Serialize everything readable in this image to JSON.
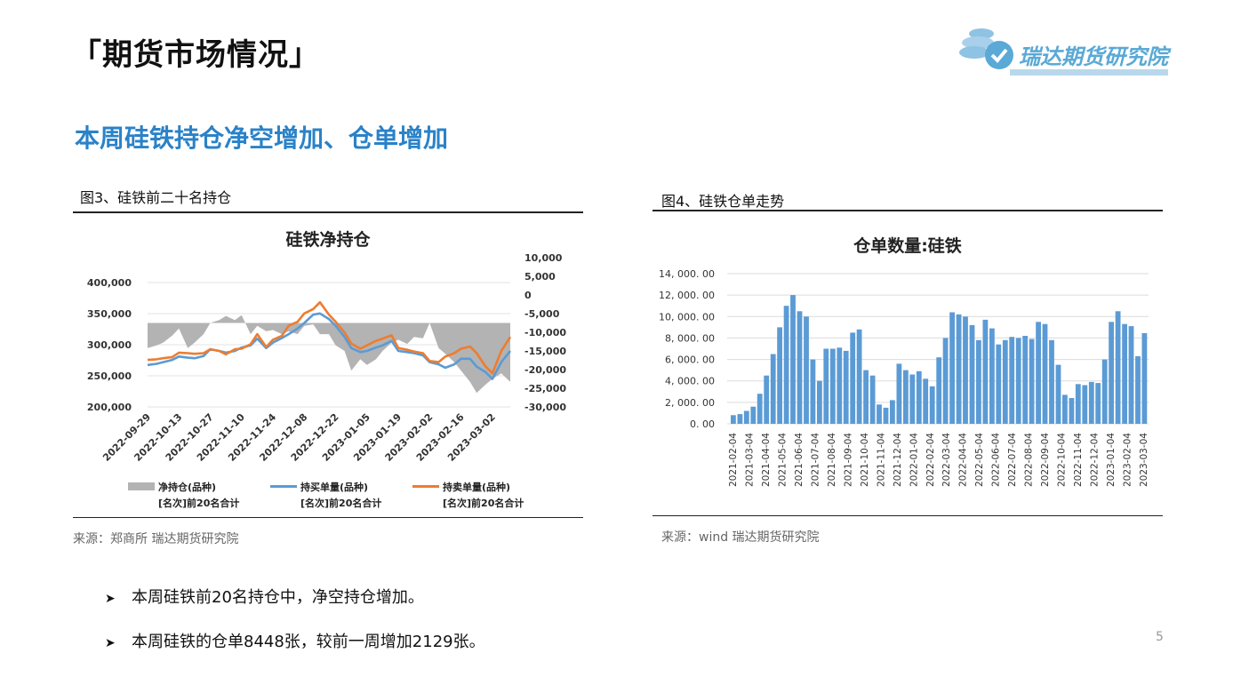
{
  "header": {
    "title": "「期货市场情况」"
  },
  "logo": {
    "text": "瑞达期货研究院"
  },
  "subtitle": "本周硅铁持仓净空增加、仓单增加",
  "figures": {
    "left": {
      "label": "图3、硅铁前二十名持仓",
      "source": "来源：郑商所  瑞达期货研究院"
    },
    "right": {
      "label": "图4、硅铁仓单走势",
      "source": "来源：wind    瑞达期货研究院"
    }
  },
  "bullets": [
    "本周硅铁前20名持仓中，净空持仓增加。",
    "本周硅铁的仓单8448张，较前一周增加2129张。"
  ],
  "page_number": "5",
  "colors": {
    "net": "#b3b3b3",
    "buy": "#5b9bd5",
    "sell": "#ed7d31",
    "bars": "#5b9bd5",
    "accent": "#2a82c8"
  },
  "chart_data": [
    {
      "type": "line",
      "title": "硅铁净持仓",
      "x_ticks": [
        "2022-09-29",
        "2022-10-13",
        "2022-10-27",
        "2022-11-10",
        "2022-11-24",
        "2022-12-08",
        "2022-12-22",
        "2023-01-05",
        "2023-01-19",
        "2023-02-02",
        "2023-02-16",
        "2023-03-02"
      ],
      "x_range": [
        "2022-09-29",
        "2023-03-10"
      ],
      "y_left": {
        "ticks": [
          "400,000",
          "350,000",
          "300,000",
          "250,000",
          "200,000"
        ],
        "ylim": [
          200000,
          400000
        ]
      },
      "y_right": {
        "ticks": [
          "10,000",
          "5,000",
          "0",
          "-5,000",
          "-10,000",
          "-15,000",
          "-20,000",
          "-25,000",
          "-30,000"
        ],
        "ylim": [
          -30000,
          10000
        ]
      },
      "legend_position": "bottom",
      "series": [
        {
          "name": "净持仓(品种)[名次]前20名合计",
          "legend_lines": [
            "净持仓(品种)",
            "[名次]前20名合计"
          ],
          "kind": "area",
          "axis": "right",
          "x": [
            "2022-09-29",
            "2022-10-03",
            "2022-10-06",
            "2022-10-10",
            "2022-10-13",
            "2022-10-17",
            "2022-10-20",
            "2022-10-24",
            "2022-10-27",
            "2022-10-31",
            "2022-11-03",
            "2022-11-07",
            "2022-11-10",
            "2022-11-14",
            "2022-11-17",
            "2022-11-21",
            "2022-11-24",
            "2022-11-28",
            "2022-12-01",
            "2022-12-05",
            "2022-12-08",
            "2022-12-12",
            "2022-12-15",
            "2022-12-19",
            "2022-12-22",
            "2022-12-26",
            "2022-12-29",
            "2023-01-02",
            "2023-01-05",
            "2023-01-09",
            "2023-01-12",
            "2023-01-16",
            "2023-01-19",
            "2023-01-23",
            "2023-01-26",
            "2023-01-30",
            "2023-02-02",
            "2023-02-06",
            "2023-02-09",
            "2023-02-13",
            "2023-02-16",
            "2023-02-20",
            "2023-02-23",
            "2023-02-27",
            "2023-03-02",
            "2023-03-06",
            "2023-03-10"
          ],
          "values": [
            -9000,
            -8000,
            -7000,
            -4500,
            -2000,
            -9000,
            -7000,
            -4000,
            0,
            1000,
            2500,
            1000,
            2800,
            -4000,
            -1000,
            -3000,
            -2500,
            -4000,
            -3000,
            -4000,
            -1000,
            -500,
            -4000,
            -4000,
            -8000,
            -10000,
            -17000,
            -13000,
            -15000,
            -13000,
            -10000,
            -7000,
            -6000,
            -7500,
            -5000,
            -5500,
            0,
            -9000,
            -11000,
            -14000,
            -17000,
            -21000,
            -25000,
            -22000,
            -20000,
            -18000,
            -21000
          ]
        },
        {
          "name": "持买单量(品种)[名次]前20名合计",
          "legend_lines": [
            "持买单量(品种)",
            "[名次]前20名合计"
          ],
          "kind": "line",
          "axis": "left",
          "x": [
            "2022-09-29",
            "2022-10-03",
            "2022-10-06",
            "2022-10-10",
            "2022-10-13",
            "2022-10-17",
            "2022-10-20",
            "2022-10-24",
            "2022-10-27",
            "2022-10-31",
            "2022-11-03",
            "2022-11-07",
            "2022-11-10",
            "2022-11-14",
            "2022-11-17",
            "2022-11-21",
            "2022-11-24",
            "2022-11-28",
            "2022-12-01",
            "2022-12-05",
            "2022-12-08",
            "2022-12-12",
            "2022-12-15",
            "2022-12-19",
            "2022-12-22",
            "2022-12-26",
            "2022-12-29",
            "2023-01-02",
            "2023-01-05",
            "2023-01-09",
            "2023-01-12",
            "2023-01-16",
            "2023-01-19",
            "2023-01-23",
            "2023-01-26",
            "2023-01-30",
            "2023-02-02",
            "2023-02-06",
            "2023-02-09",
            "2023-02-13",
            "2023-02-16",
            "2023-02-20",
            "2023-02-23",
            "2023-02-27",
            "2023-03-02",
            "2023-03-06",
            "2023-03-10"
          ],
          "values": [
            275000,
            277000,
            280000,
            284000,
            290000,
            288000,
            287000,
            291000,
            303000,
            300000,
            297000,
            300000,
            306000,
            310000,
            322000,
            305000,
            315000,
            323000,
            330000,
            340000,
            350000,
            365000,
            367000,
            357000,
            345000,
            325000,
            305000,
            298000,
            300000,
            306000,
            310000,
            318000,
            300000,
            298000,
            296000,
            292000,
            280000,
            276000,
            270000,
            276000,
            286000,
            286000,
            272000,
            262000,
            250000,
            280000,
            300000
          ]
        },
        {
          "name": "持卖单量(品种)[名次]前20名合计",
          "legend_lines": [
            "持卖单量(品种)",
            "[名次]前20名合计"
          ],
          "kind": "line",
          "axis": "left",
          "x": [
            "2022-09-29",
            "2022-10-03",
            "2022-10-06",
            "2022-10-10",
            "2022-10-13",
            "2022-10-17",
            "2022-10-20",
            "2022-10-24",
            "2022-10-27",
            "2022-10-31",
            "2022-11-03",
            "2022-11-07",
            "2022-11-10",
            "2022-11-14",
            "2022-11-17",
            "2022-11-21",
            "2022-11-24",
            "2022-11-28",
            "2022-12-01",
            "2022-12-05",
            "2022-12-08",
            "2022-12-12",
            "2022-12-15",
            "2022-12-19",
            "2022-12-22",
            "2022-12-26",
            "2022-12-29",
            "2023-01-02",
            "2023-01-05",
            "2023-01-09",
            "2023-01-12",
            "2023-01-16",
            "2023-01-19",
            "2023-01-23",
            "2023-01-26",
            "2023-01-30",
            "2023-02-02",
            "2023-02-06",
            "2023-02-09",
            "2023-02-13",
            "2023-02-16",
            "2023-02-20",
            "2023-02-23",
            "2023-02-27",
            "2023-03-02",
            "2023-03-06",
            "2023-03-10"
          ],
          "values": [
            284000,
            285000,
            287000,
            289000,
            297000,
            296000,
            295000,
            296000,
            303000,
            300000,
            294000,
            303000,
            304000,
            312000,
            330000,
            307000,
            320000,
            327000,
            345000,
            352000,
            367000,
            375000,
            387000,
            365000,
            352000,
            333000,
            313000,
            304000,
            310000,
            318000,
            322000,
            328000,
            305000,
            302000,
            299000,
            296000,
            282000,
            280000,
            290000,
            296000,
            304000,
            308000,
            296000,
            272000,
            260000,
            300000,
            325000
          ]
        }
      ]
    },
    {
      "type": "bar",
      "title": "仓单数量:硅铁",
      "x_ticks": [
        "2021-02-04",
        "2021-03-04",
        "2021-04-04",
        "2021-05-04",
        "2021-06-04",
        "2021-07-04",
        "2021-08-04",
        "2021-09-04",
        "2021-10-04",
        "2021-11-04",
        "2021-12-04",
        "2022-01-04",
        "2022-02-04",
        "2022-03-04",
        "2022-04-04",
        "2022-05-04",
        "2022-06-04",
        "2022-07-04",
        "2022-08-04",
        "2022-09-04",
        "2022-10-04",
        "2022-11-04",
        "2022-12-04",
        "2023-01-04",
        "2023-02-04",
        "2023-03-04"
      ],
      "y_ticks": [
        "14, 000. 00",
        "12, 000. 00",
        "10, 000. 00",
        "8, 000. 00",
        "6, 000. 00",
        "4, 000. 00",
        "2, 000. 00",
        "0. 00"
      ],
      "ylim": [
        0,
        14000
      ],
      "grid": true,
      "values_per_half_month": [
        800,
        900,
        1200,
        1600,
        2800,
        4500,
        6500,
        9000,
        11000,
        12000,
        10500,
        10000,
        6000,
        4000,
        7000,
        7000,
        7100,
        6800,
        8500,
        8800,
        5000,
        4500,
        1800,
        1500,
        2200,
        5600,
        5000,
        4600,
        4900,
        4200,
        3500,
        6200,
        8000,
        10400,
        10200,
        10000,
        9200,
        7800,
        9700,
        8900,
        7400,
        7800,
        8100,
        8000,
        8200,
        7900,
        9500,
        9300,
        7800,
        5500,
        2700,
        2400,
        3700,
        3600,
        3900,
        3800,
        6000,
        9500,
        10500,
        9300,
        9100,
        6300,
        8448
      ]
    }
  ]
}
